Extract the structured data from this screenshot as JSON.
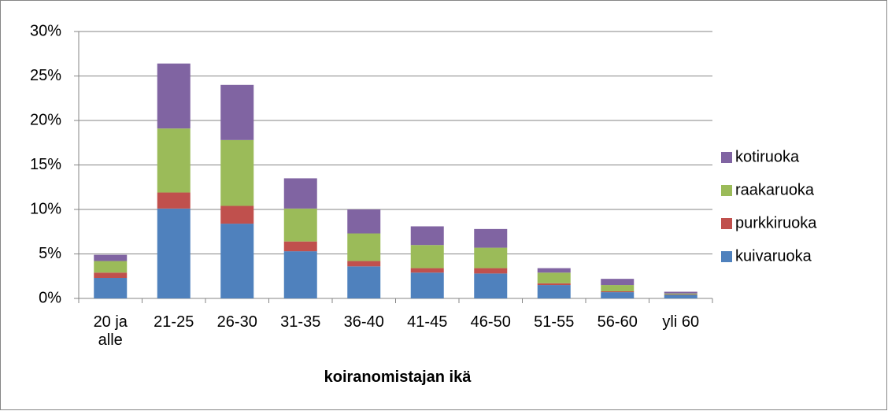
{
  "chart_data": {
    "type": "stacked_bar",
    "x_label": "koiranomistajan ikä",
    "categories": [
      "20 ja alle",
      "21-25",
      "26-30",
      "31-35",
      "36-40",
      "41-45",
      "46-50",
      "51-55",
      "56-60",
      "yli 60"
    ],
    "series": [
      {
        "name": "kuivaruoka",
        "color": "#4f81bd",
        "values": [
          2.3,
          10.1,
          8.4,
          5.3,
          3.6,
          2.9,
          2.8,
          1.5,
          0.7,
          0.4
        ]
      },
      {
        "name": "purkkiruoka",
        "color": "#c0504d",
        "values": [
          0.6,
          1.8,
          2.0,
          1.1,
          0.6,
          0.5,
          0.6,
          0.2,
          0.1,
          0.05
        ]
      },
      {
        "name": "raakaruoka",
        "color": "#9bbb59",
        "values": [
          1.3,
          7.2,
          7.4,
          3.7,
          3.1,
          2.6,
          2.3,
          1.2,
          0.7,
          0.1
        ]
      },
      {
        "name": "kotiruoka",
        "color": "#8064a2",
        "values": [
          0.7,
          7.3,
          6.2,
          3.4,
          2.7,
          2.1,
          2.1,
          0.5,
          0.7,
          0.2
        ]
      }
    ],
    "ylim": [
      0,
      30
    ],
    "yticks": [
      {
        "value": 0,
        "label": "0%"
      },
      {
        "value": 5,
        "label": "5%"
      },
      {
        "value": 10,
        "label": "10%"
      },
      {
        "value": 15,
        "label": "15%"
      },
      {
        "value": 20,
        "label": "20%"
      },
      {
        "value": 25,
        "label": "25%"
      },
      {
        "value": 30,
        "label": "30%"
      }
    ],
    "grid": true,
    "legend": "right"
  }
}
